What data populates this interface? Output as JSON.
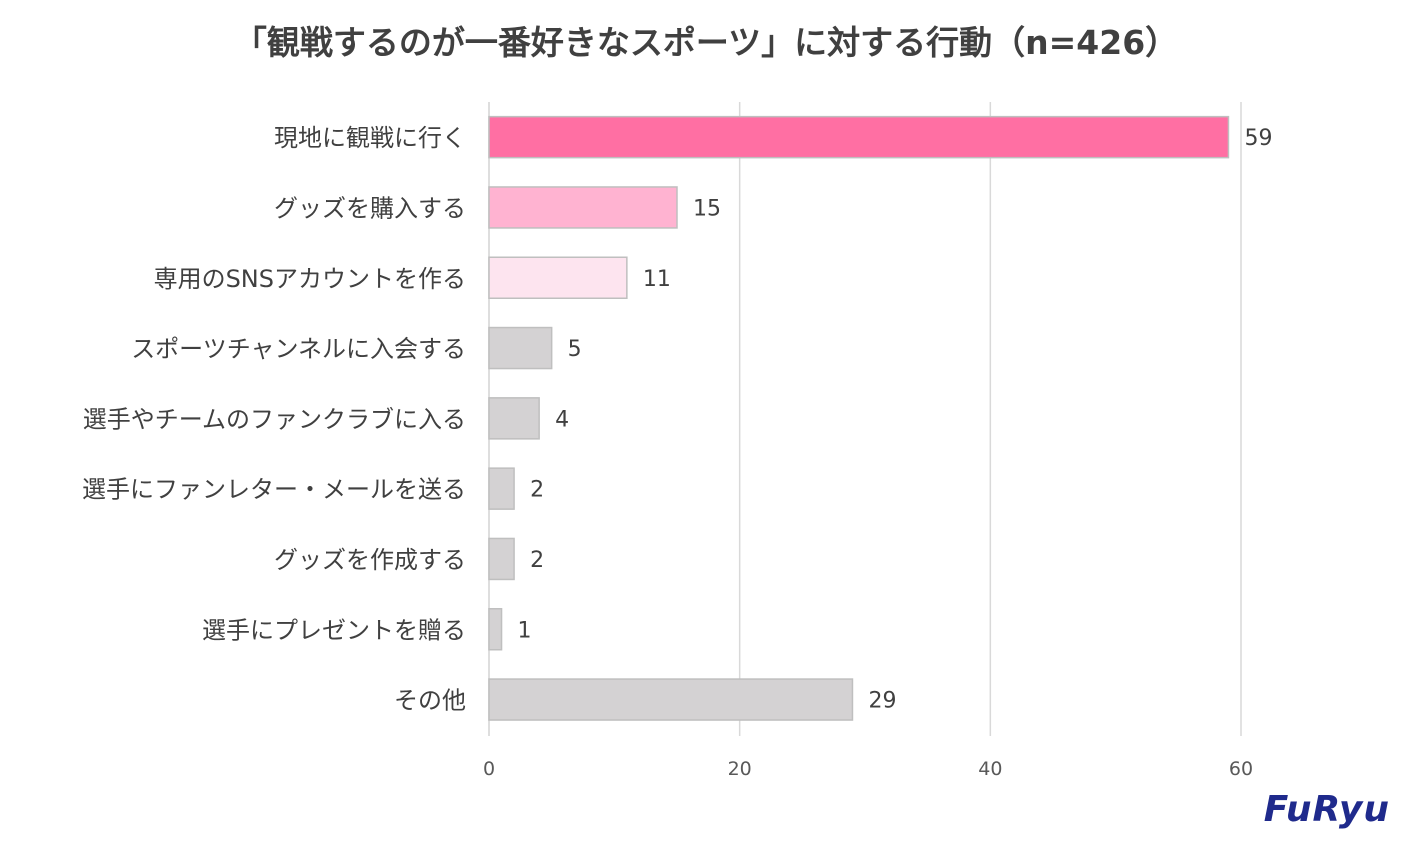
{
  "chart_data": {
    "type": "bar",
    "orientation": "horizontal",
    "title": "「観戦するのが一番好きなスポーツ」に対する行動（n=426）",
    "categories": [
      "現地に観戦に行く",
      "グッズを購入する",
      "専用のSNSアカウントを作る",
      "スポーツチャンネルに入会する",
      "選手やチームのファンクラブに入る",
      "選手にファンレター・メールを送る",
      "グッズを作成する",
      "選手にプレゼントを贈る",
      "その他"
    ],
    "values": [
      59,
      15,
      11,
      5,
      4,
      2,
      2,
      1,
      29
    ],
    "bar_colors": [
      "#ff6fa3",
      "#ffb3d1",
      "#fde4ef",
      "#d4d2d3",
      "#d4d2d3",
      "#d4d2d3",
      "#d4d2d3",
      "#d4d2d3",
      "#d4d2d3"
    ],
    "xlim": [
      0,
      60
    ],
    "xticks": [
      0,
      20,
      40,
      60
    ],
    "grid": "vertical",
    "data_labels": true
  },
  "brand": {
    "logo_text": "FuRyu",
    "color": "#1f2a8c"
  }
}
